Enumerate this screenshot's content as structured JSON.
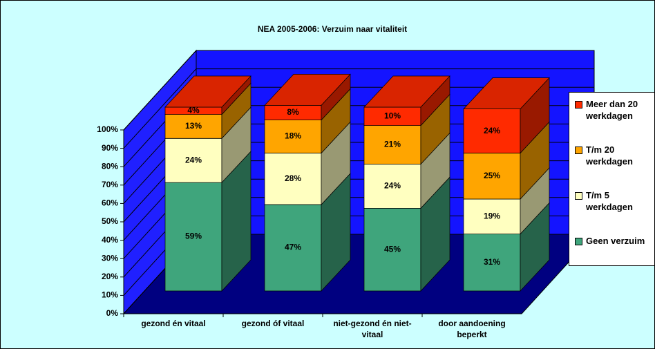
{
  "chart_data": {
    "type": "bar3d_stacked",
    "title": "NEA 2005-2006: Verzuim naar vitaliteit",
    "categories": [
      "gezond én vitaal",
      "gezond óf vitaal",
      "niet-gezond én niet-vitaal",
      "door aandoening beperkt"
    ],
    "series": [
      {
        "name": "Geen verzuim",
        "color": "#3fa57c",
        "values": [
          59,
          47,
          45,
          31
        ],
        "value_labels": [
          "59%",
          "47%",
          "45%",
          "31%"
        ]
      },
      {
        "name": "T/m 5 werkdagen",
        "color": "#ffffc0",
        "values": [
          24,
          28,
          24,
          19
        ],
        "value_labels": [
          "24%",
          "28%",
          "24%",
          "19%"
        ]
      },
      {
        "name": "T/m 20 werkdagen",
        "color": "#ffa500",
        "values": [
          13,
          18,
          21,
          25
        ],
        "value_labels": [
          "13%",
          "18%",
          "21%",
          "25%"
        ]
      },
      {
        "name": "Meer dan 20 werkdagen",
        "color": "#ff2a00",
        "values": [
          4,
          8,
          10,
          24
        ],
        "value_labels": [
          "4%",
          "8%",
          "10%",
          "24%"
        ]
      }
    ],
    "ylim": [
      0,
      100
    ],
    "yticks": [
      {
        "value": 0,
        "label": "0%"
      },
      {
        "value": 10,
        "label": "10%"
      },
      {
        "value": 20,
        "label": "20%"
      },
      {
        "value": 30,
        "label": "30%"
      },
      {
        "value": 40,
        "label": "40%"
      },
      {
        "value": 50,
        "label": "50%"
      },
      {
        "value": 60,
        "label": "60%"
      },
      {
        "value": 70,
        "label": "70%"
      },
      {
        "value": 80,
        "label": "80%"
      },
      {
        "value": 90,
        "label": "90%"
      },
      {
        "value": 100,
        "label": "100%"
      }
    ],
    "grid": true,
    "legend": "right"
  }
}
